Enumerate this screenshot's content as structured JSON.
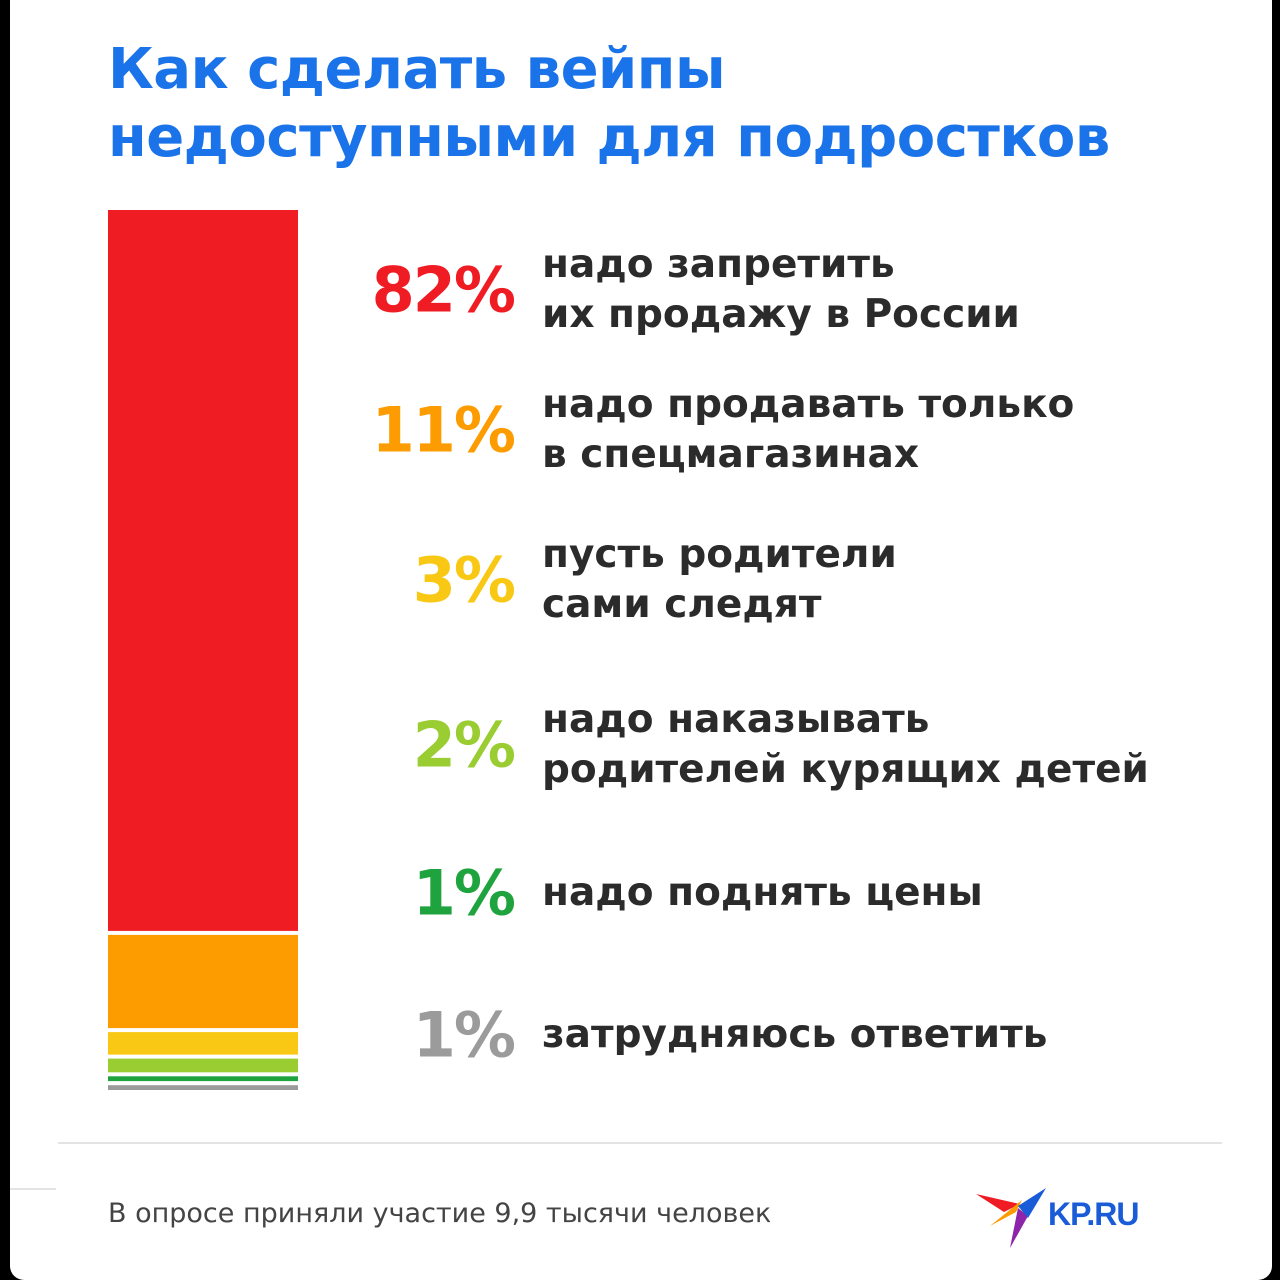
{
  "title_lines": [
    "Как сделать вейпы",
    "недоступными для подростков"
  ],
  "footnote": "В опросе приняли участие 9,9 тысячи человек",
  "logo": {
    "text": "KP.RU",
    "icon": "kp-bird-logo-icon"
  },
  "colors": {
    "title": "#1a73e8",
    "label": "#2b2b2b",
    "series": [
      "#ef1c24",
      "#fd9c00",
      "#f8c815",
      "#9acd32",
      "#1fa33f",
      "#9b9b9b"
    ]
  },
  "chart_data": {
    "type": "bar",
    "orientation": "stacked-vertical",
    "title": "Как сделать вейпы недоступными для подростков",
    "unit": "%",
    "categories": [
      "надо запретить их продажу в России",
      "надо продавать только в спецмагазинах",
      "пусть родители сами следят",
      "надо наказывать родителей курящих детей",
      "надо поднять цены",
      "затрудняюсь ответить"
    ],
    "label_lines": [
      [
        "надо запретить",
        "их продажу в России"
      ],
      [
        "надо продавать только",
        "в спецмагазинах"
      ],
      [
        "пусть родители",
        "сами следят"
      ],
      [
        "надо наказывать",
        "родителей курящих детей"
      ],
      [
        "надо поднять цены"
      ],
      [
        "затрудняюсь ответить"
      ]
    ],
    "values": [
      82,
      11,
      3,
      2,
      1,
      1
    ],
    "value_labels": [
      "82%",
      "11%",
      "3%",
      "2%",
      "1%",
      "1%"
    ],
    "legend": "none",
    "grid": false
  }
}
